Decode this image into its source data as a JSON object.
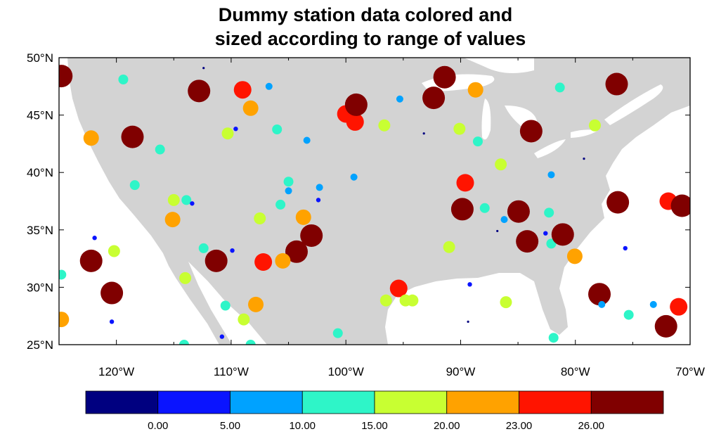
{
  "title": {
    "line1": "Dummy station data colored and",
    "line2": "sized according to range of values"
  },
  "colors": {
    "land": "#d3d3d3",
    "water": "#ffffff",
    "bins": [
      "#000080",
      "#0a14ff",
      "#00a2ff",
      "#2ef5c8",
      "#c8ff32",
      "#ffa200",
      "#ff1400",
      "#800000"
    ]
  },
  "chart_data": {
    "type": "scatter",
    "title": "Dummy station data colored and sized according to range of values",
    "xlim": [
      -125,
      -70
    ],
    "ylim": [
      25,
      50
    ],
    "x_ticks": [
      {
        "value": -120,
        "label": "120°W"
      },
      {
        "value": -110,
        "label": "110°W"
      },
      {
        "value": -100,
        "label": "100°W"
      },
      {
        "value": -90,
        "label": "90°W"
      },
      {
        "value": -80,
        "label": "80°W"
      },
      {
        "value": -70,
        "label": "70°W"
      }
    ],
    "y_ticks": [
      {
        "value": 50,
        "label": "50°N"
      },
      {
        "value": 45,
        "label": "45°N"
      },
      {
        "value": 40,
        "label": "40°N"
      },
      {
        "value": 35,
        "label": "35°N"
      },
      {
        "value": 30,
        "label": "30°N"
      },
      {
        "value": 25,
        "label": "25°N"
      }
    ],
    "colorbar_levels": [
      "0.00",
      "5.00",
      "10.00",
      "15.00",
      "20.00",
      "23.00",
      "26.00"
    ],
    "points": [
      {
        "lon": -124.8,
        "lat": 48.4,
        "bin": 7
      },
      {
        "lon": -119.4,
        "lat": 48.1,
        "bin": 3
      },
      {
        "lon": -112.4,
        "lat": 49.1,
        "bin": 0
      },
      {
        "lon": -112.8,
        "lat": 47.1,
        "bin": 7
      },
      {
        "lon": -109.0,
        "lat": 47.2,
        "bin": 6
      },
      {
        "lon": -106.7,
        "lat": 47.5,
        "bin": 2
      },
      {
        "lon": -108.3,
        "lat": 45.6,
        "bin": 5
      },
      {
        "lon": -122.2,
        "lat": 43.0,
        "bin": 5
      },
      {
        "lon": -118.6,
        "lat": 43.1,
        "bin": 7
      },
      {
        "lon": -116.2,
        "lat": 42.0,
        "bin": 3
      },
      {
        "lon": -109.6,
        "lat": 43.8,
        "bin": 1
      },
      {
        "lon": -110.3,
        "lat": 43.4,
        "bin": 4
      },
      {
        "lon": -106.0,
        "lat": 43.75,
        "bin": 3
      },
      {
        "lon": -103.4,
        "lat": 42.8,
        "bin": 2
      },
      {
        "lon": -118.4,
        "lat": 38.9,
        "bin": 3
      },
      {
        "lon": -115.0,
        "lat": 37.6,
        "bin": 4
      },
      {
        "lon": -113.9,
        "lat": 37.6,
        "bin": 3
      },
      {
        "lon": -113.4,
        "lat": 37.3,
        "bin": 1
      },
      {
        "lon": -115.1,
        "lat": 35.9,
        "bin": 5
      },
      {
        "lon": -105.0,
        "lat": 39.2,
        "bin": 3
      },
      {
        "lon": -105.0,
        "lat": 38.4,
        "bin": 2
      },
      {
        "lon": -105.7,
        "lat": 37.2,
        "bin": 3
      },
      {
        "lon": -102.3,
        "lat": 38.7,
        "bin": 2
      },
      {
        "lon": -102.4,
        "lat": 37.6,
        "bin": 1
      },
      {
        "lon": -99.3,
        "lat": 39.6,
        "bin": 2
      },
      {
        "lon": -107.5,
        "lat": 36.0,
        "bin": 4
      },
      {
        "lon": -103.7,
        "lat": 36.1,
        "bin": 5
      },
      {
        "lon": -103.0,
        "lat": 34.5,
        "bin": 7
      },
      {
        "lon": -104.3,
        "lat": 33.1,
        "bin": 7
      },
      {
        "lon": -105.5,
        "lat": 32.3,
        "bin": 5
      },
      {
        "lon": -107.2,
        "lat": 32.2,
        "bin": 6
      },
      {
        "lon": -111.3,
        "lat": 32.3,
        "bin": 7
      },
      {
        "lon": -112.4,
        "lat": 33.4,
        "bin": 3
      },
      {
        "lon": -109.9,
        "lat": 33.2,
        "bin": 1
      },
      {
        "lon": -121.9,
        "lat": 34.3,
        "bin": 1
      },
      {
        "lon": -122.2,
        "lat": 32.3,
        "bin": 7
      },
      {
        "lon": -120.2,
        "lat": 33.15,
        "bin": 4
      },
      {
        "lon": -124.8,
        "lat": 31.1,
        "bin": 3
      },
      {
        "lon": -120.4,
        "lat": 29.5,
        "bin": 7
      },
      {
        "lon": -124.8,
        "lat": 27.2,
        "bin": 5
      },
      {
        "lon": -120.4,
        "lat": 27.0,
        "bin": 1
      },
      {
        "lon": -114.0,
        "lat": 30.8,
        "bin": 4
      },
      {
        "lon": -110.5,
        "lat": 28.4,
        "bin": 3
      },
      {
        "lon": -107.85,
        "lat": 28.5,
        "bin": 5
      },
      {
        "lon": -108.9,
        "lat": 27.2,
        "bin": 4
      },
      {
        "lon": -110.8,
        "lat": 25.7,
        "bin": 1
      },
      {
        "lon": -114.1,
        "lat": 25.0,
        "bin": 3
      },
      {
        "lon": -108.3,
        "lat": 25.0,
        "bin": 3
      },
      {
        "lon": -100.0,
        "lat": 45.1,
        "bin": 6
      },
      {
        "lon": -99.2,
        "lat": 44.4,
        "bin": 6
      },
      {
        "lon": -99.1,
        "lat": 45.9,
        "bin": 7
      },
      {
        "lon": -95.3,
        "lat": 46.4,
        "bin": 2
      },
      {
        "lon": -96.65,
        "lat": 44.1,
        "bin": 4
      },
      {
        "lon": -93.2,
        "lat": 43.4,
        "bin": 0
      },
      {
        "lon": -91.4,
        "lat": 48.3,
        "bin": 7
      },
      {
        "lon": -92.35,
        "lat": 46.5,
        "bin": 7
      },
      {
        "lon": -88.7,
        "lat": 47.2,
        "bin": 5
      },
      {
        "lon": -90.1,
        "lat": 43.8,
        "bin": 4
      },
      {
        "lon": -88.5,
        "lat": 42.7,
        "bin": 3
      },
      {
        "lon": -89.6,
        "lat": 39.1,
        "bin": 6
      },
      {
        "lon": -86.5,
        "lat": 40.7,
        "bin": 4
      },
      {
        "lon": -89.85,
        "lat": 36.8,
        "bin": 7
      },
      {
        "lon": -87.9,
        "lat": 36.9,
        "bin": 3
      },
      {
        "lon": -86.2,
        "lat": 35.9,
        "bin": 2
      },
      {
        "lon": -86.8,
        "lat": 34.9,
        "bin": 0
      },
      {
        "lon": -84.95,
        "lat": 36.6,
        "bin": 7
      },
      {
        "lon": -84.2,
        "lat": 34.0,
        "bin": 7
      },
      {
        "lon": -82.3,
        "lat": 36.5,
        "bin": 3
      },
      {
        "lon": -82.1,
        "lat": 39.8,
        "bin": 2
      },
      {
        "lon": -82.6,
        "lat": 34.7,
        "bin": 1
      },
      {
        "lon": -82.1,
        "lat": 33.8,
        "bin": 3
      },
      {
        "lon": -81.1,
        "lat": 34.6,
        "bin": 7
      },
      {
        "lon": -80.05,
        "lat": 32.7,
        "bin": 5
      },
      {
        "lon": -81.35,
        "lat": 47.4,
        "bin": 3
      },
      {
        "lon": -76.4,
        "lat": 47.7,
        "bin": 7
      },
      {
        "lon": -78.3,
        "lat": 44.1,
        "bin": 4
      },
      {
        "lon": -79.25,
        "lat": 41.2,
        "bin": 0
      },
      {
        "lon": -83.85,
        "lat": 43.6,
        "bin": 7
      },
      {
        "lon": -76.3,
        "lat": 37.4,
        "bin": 7
      },
      {
        "lon": -71.9,
        "lat": 37.5,
        "bin": 6
      },
      {
        "lon": -70.7,
        "lat": 37.1,
        "bin": 7
      },
      {
        "lon": -75.65,
        "lat": 33.4,
        "bin": 1
      },
      {
        "lon": -91.0,
        "lat": 33.5,
        "bin": 4
      },
      {
        "lon": -95.4,
        "lat": 29.9,
        "bin": 6
      },
      {
        "lon": -96.5,
        "lat": 28.85,
        "bin": 4
      },
      {
        "lon": -94.8,
        "lat": 28.85,
        "bin": 4
      },
      {
        "lon": -94.2,
        "lat": 28.85,
        "bin": 4
      },
      {
        "lon": -89.2,
        "lat": 30.25,
        "bin": 1
      },
      {
        "lon": -89.35,
        "lat": 27.0,
        "bin": 0
      },
      {
        "lon": -86.05,
        "lat": 28.7,
        "bin": 4
      },
      {
        "lon": -77.9,
        "lat": 29.4,
        "bin": 7
      },
      {
        "lon": -77.7,
        "lat": 28.5,
        "bin": 2
      },
      {
        "lon": -75.35,
        "lat": 27.6,
        "bin": 3
      },
      {
        "lon": -73.2,
        "lat": 28.5,
        "bin": 2
      },
      {
        "lon": -71.0,
        "lat": 28.3,
        "bin": 6
      },
      {
        "lon": -72.1,
        "lat": 26.6,
        "bin": 7
      },
      {
        "lon": -81.9,
        "lat": 25.6,
        "bin": 3
      },
      {
        "lon": -100.7,
        "lat": 26.0,
        "bin": 3
      }
    ]
  }
}
